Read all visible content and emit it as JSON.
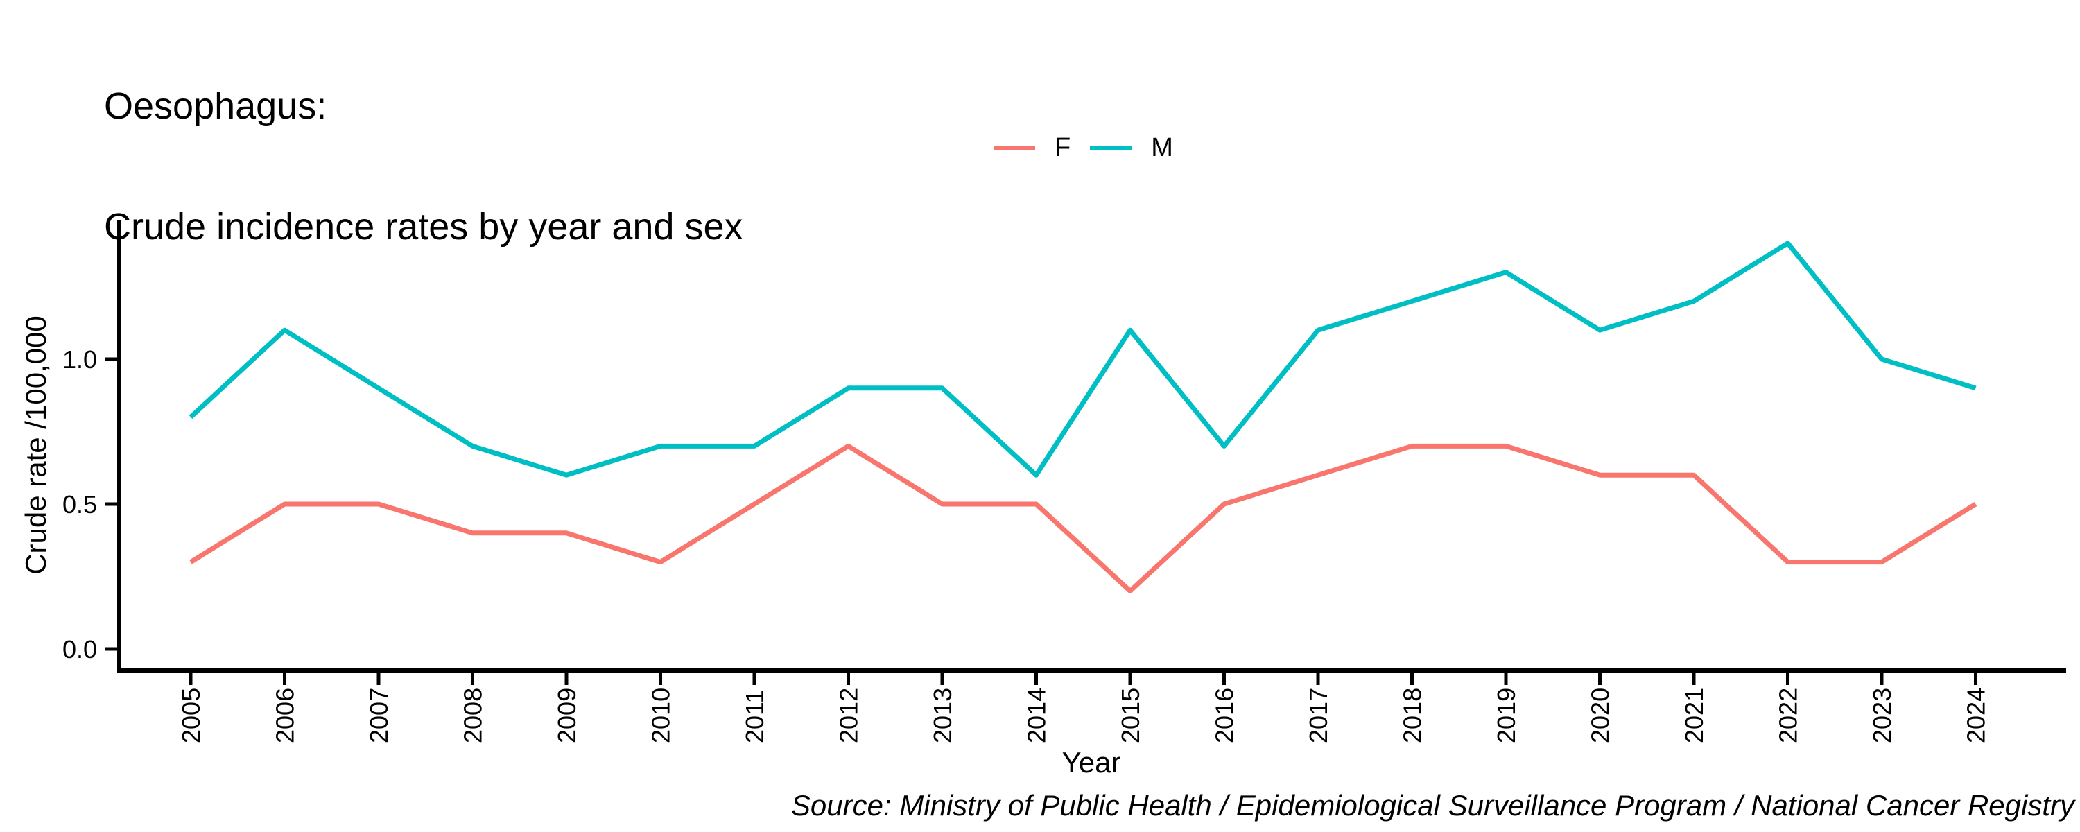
{
  "title": {
    "line1": "Oesophagus:",
    "line2": "Crude incidence rates by year and sex"
  },
  "axes": {
    "x_title": "Year",
    "y_title": "Crude rate /100,000"
  },
  "source_note": "Source: Ministry of Public Health / Epidemiological Surveillance Program / National Cancer Registry",
  "chart_data": {
    "type": "line",
    "title": "Oesophagus: Crude incidence rates by year and sex",
    "xlabel": "Year",
    "ylabel": "Crude rate /100,000",
    "x": [
      2005,
      2006,
      2007,
      2008,
      2009,
      2010,
      2011,
      2012,
      2013,
      2014,
      2015,
      2016,
      2017,
      2018,
      2019,
      2020,
      2021,
      2022,
      2023,
      2024
    ],
    "series": [
      {
        "name": "F",
        "color": "#F8766D",
        "values": [
          0.3,
          0.5,
          0.5,
          0.4,
          0.4,
          0.3,
          0.5,
          0.7,
          0.5,
          0.5,
          0.2,
          0.5,
          0.6,
          0.7,
          0.7,
          0.6,
          0.6,
          0.3,
          0.3,
          0.5
        ]
      },
      {
        "name": "M",
        "color": "#00BFC4",
        "values": [
          0.8,
          1.1,
          0.9,
          0.7,
          0.6,
          0.7,
          0.7,
          0.9,
          0.9,
          0.6,
          1.1,
          0.7,
          1.1,
          1.2,
          1.3,
          1.1,
          1.2,
          1.4,
          1.0,
          0.9
        ]
      }
    ],
    "yticks": [
      0.0,
      0.5,
      1.0
    ],
    "ylim": [
      0,
      1.45
    ],
    "grid": false,
    "legend_position": "top-center",
    "axis_color": "#000000"
  }
}
